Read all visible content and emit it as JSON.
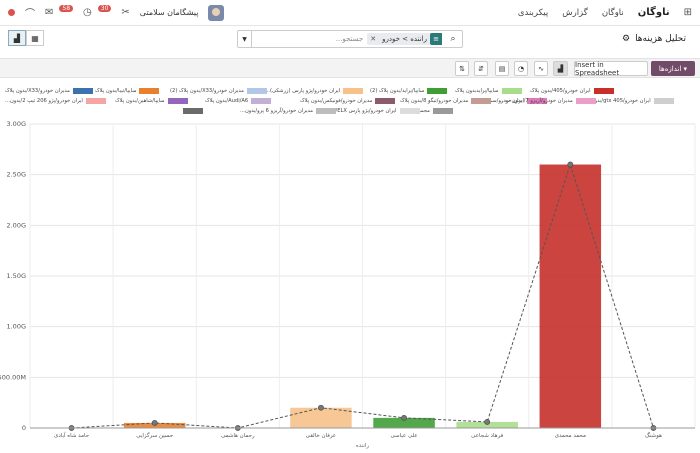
{
  "app": {
    "name": "ناوگان",
    "menus": [
      "ناوگان",
      "گزارش",
      "پیکربندی"
    ]
  },
  "user": {
    "name": "پیشگامان سلامتی"
  },
  "systray": {
    "chat_count": "58",
    "activity_count": "30"
  },
  "page": {
    "title": "تحلیل هزینه‌ها",
    "gear": "⚙"
  },
  "search": {
    "facet_label": "راننده > خودرو",
    "placeholder": "جستجو..."
  },
  "toolbar": {
    "measures": "اندازه‌ها",
    "insert": "Insert in Spreadsheet"
  },
  "legend": [
    {
      "label": "ایران خودرو/405/بدون پلاک",
      "color": "#c7302a"
    },
    {
      "label": "سایپا/پرایدبدون پلاک",
      "color": "#a8dd8c"
    },
    {
      "label": "سایپا/پراید/بدون پلاک (2)",
      "color": "#3f9e36"
    },
    {
      "label": "ایران خودرو/پژو پارس (زرشکی)...",
      "color": "#f6c28a"
    },
    {
      "label": "مدیران خودرو/X33/بدون پلاک (2)",
      "color": "#b3c7e6"
    },
    {
      "label": "سایپا/تیبا/بدون پلاک",
      "color": "#e8812f"
    },
    {
      "label": "مدیران خودرو/X33/بدون پلاک",
      "color": "#3a73ad"
    },
    {
      "label": "ایران خودرو/405 gtx/بدون پلاک",
      "color": "#cfcfcf"
    },
    {
      "label": "ایران خودرو/سمند...",
      "color": "#e07ab8"
    },
    {
      "label": "مدیران خودرو/آریزو 7/ بدون پ...",
      "color": "#ea9ec9"
    },
    {
      "label": "مدیران خودرو/تیگو 8/بدون پلاک",
      "color": "#c49c94"
    },
    {
      "label": "مدیران خودرو/فونیکس/بدون پلاک",
      "color": "#8c5a6d"
    },
    {
      "label": "Audi/A6/بدون پلاک",
      "color": "#c5b0d5"
    },
    {
      "label": "سایپا/شاهین/بدون پلاک",
      "color": "#9467bd"
    },
    {
      "label": "ایران خودرو/پژو 206 تیپ 2/بدون...",
      "color": "#f4a6a6"
    },
    {
      "label": "مجموع",
      "color": "#9a9a9a"
    },
    {
      "label": "ایران خودرو/پژو پارس ELX/بدون...",
      "color": "#dcdcdc"
    },
    {
      "label": "مدیران خودرو/آریزو 6 پرو/بدون...",
      "color": "#bdbdbd"
    },
    {
      "label": "",
      "color": "#6b6b6b"
    }
  ],
  "chart_data": {
    "type": "bar",
    "categories": [
      "حامد شاه آبادی",
      "حسین سرگزایی",
      "رحمان هاشمی",
      "عرفان خالقی",
      "علی عباسی",
      "فرهاد شجاعی",
      "محمد محمدی",
      "هوشنگ"
    ],
    "series": [
      {
        "values": [
          0,
          0.05,
          0,
          0.2,
          0.1,
          0.06,
          2.6,
          0
        ]
      },
      {
        "name": "مجموع",
        "values": [
          0,
          0.05,
          0,
          0.2,
          0.1,
          0.06,
          2.6,
          0
        ]
      }
    ],
    "bar_colors": [
      "#e8812f",
      "#e8812f",
      "#f6c28a",
      "#f6c28a",
      "#3f9e36",
      "#a8dd8c",
      "#c7302a",
      "#3a73ad"
    ],
    "y_ticks": [
      "0",
      "500.00M",
      "1.00G",
      "1.50G",
      "2.00G",
      "2.50G",
      "3.00G"
    ],
    "ylim": [
      0,
      3
    ],
    "xlabel": "راننده",
    "grid": true
  }
}
